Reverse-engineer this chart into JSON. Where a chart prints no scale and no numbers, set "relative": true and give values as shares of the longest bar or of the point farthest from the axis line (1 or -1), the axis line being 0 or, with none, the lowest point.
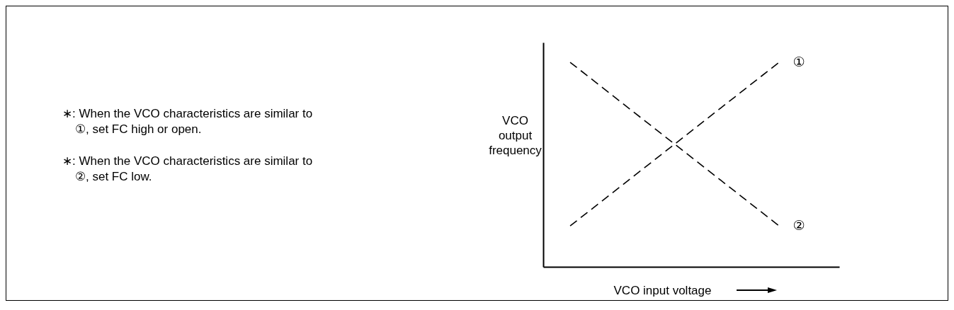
{
  "chart_data": {
    "type": "line",
    "relative": true,
    "xlabel": "VCO input voltage",
    "ylabel": "VCO output frequency",
    "categories": [
      null,
      null
    ],
    "series": [
      {
        "name": "①",
        "color": "#000000",
        "values": [
          0.2,
          1
        ]
      },
      {
        "name": "②",
        "color": "#000000",
        "values": [
          1,
          0.2
        ]
      }
    ],
    "line_style": "dashed",
    "marker": "none",
    "annotations": [
      "∗: When the VCO characteristics are similar to ①, set FC high or open.",
      "∗: When the VCO characteristics are similar to ②, set FC low."
    ]
  }
}
